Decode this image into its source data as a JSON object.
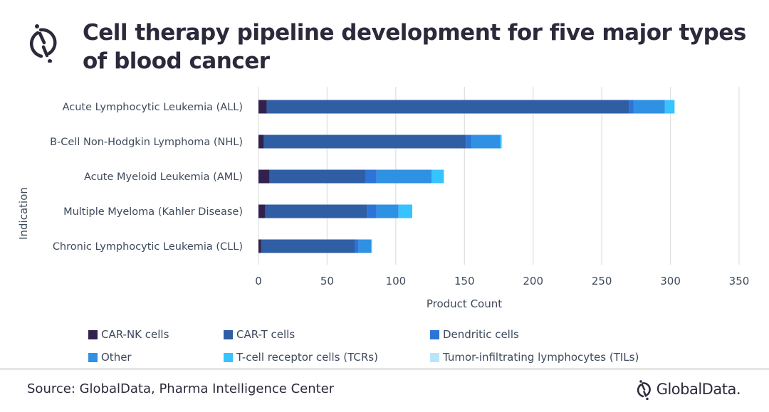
{
  "header": {
    "title": "Cell therapy pipeline development for five major types of blood cancer",
    "logo_icon": "globaldata-logo-icon"
  },
  "footer": {
    "source": "Source: GlobalData, Pharma Intelligence Center",
    "brand": "GlobalData."
  },
  "colors": {
    "title": "#2b2a3b",
    "gridline": "#e1e1e1"
  },
  "chart_data": {
    "type": "bar",
    "orientation": "horizontal",
    "stacked": true,
    "title": "Cell therapy pipeline development for five major types of blood cancer",
    "xlabel": "Product Count",
    "ylabel": "Indication",
    "xlim": [
      0,
      350
    ],
    "xticks": [
      0,
      50,
      100,
      150,
      200,
      250,
      300,
      350
    ],
    "grid": true,
    "legend_position": "bottom",
    "categories": [
      "Acute Lymphocytic Leukemia (ALL)",
      "B-Cell Non-Hodgkin Lymphoma (NHL)",
      "Acute Myeloid Leukemia (AML)",
      "Multiple Myeloma (Kahler Disease)",
      "Chronic Lymphocytic Leukemia (CLL)"
    ],
    "series": [
      {
        "name": "CAR-NK cells",
        "color": "#32214f",
        "values": [
          6,
          4,
          8,
          5,
          2
        ]
      },
      {
        "name": "CAR-T cells",
        "color": "#2f5ea5",
        "values": [
          264,
          147,
          70,
          74,
          68
        ]
      },
      {
        "name": "Dendritic cells",
        "color": "#2c74d6",
        "values": [
          3,
          4,
          8,
          7,
          3
        ]
      },
      {
        "name": "Other",
        "color": "#2f91e3",
        "values": [
          23,
          21,
          40,
          16,
          9
        ]
      },
      {
        "name": "T-cell receptor cells (TCRs)",
        "color": "#36c3ff",
        "values": [
          7,
          1,
          9,
          10,
          0.5
        ]
      },
      {
        "name": "Tumor-infiltrating lymphocytes (TILs)",
        "color": "#b7e6fb",
        "values": [
          0,
          0.5,
          0,
          0,
          0.5
        ]
      }
    ]
  }
}
